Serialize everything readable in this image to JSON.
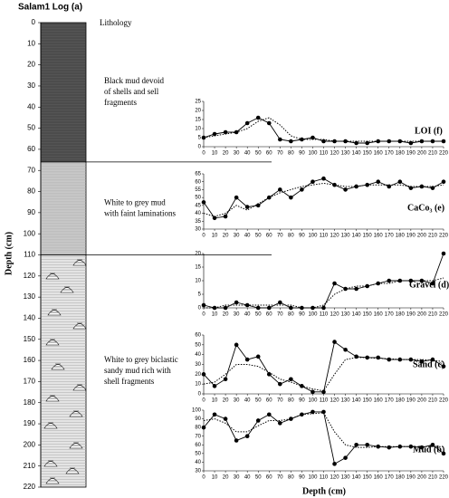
{
  "chart_data": [
    {
      "type": "lithology",
      "title": "Salam1 Log (a)",
      "ylabel": "Depth (cm)",
      "column_label": "Lithology",
      "ylim": [
        0,
        220
      ],
      "yticks": [
        0,
        10,
        20,
        30,
        40,
        50,
        60,
        70,
        80,
        90,
        100,
        110,
        120,
        130,
        140,
        150,
        160,
        170,
        180,
        190,
        200,
        210,
        220
      ],
      "layers": [
        {
          "from": 0,
          "to": 66,
          "color": "#555555",
          "lines": [
            "Black mud devoid",
            "of shells and sell",
            "fragments"
          ]
        },
        {
          "from": 66,
          "to": 110,
          "color": "#c8c8c8",
          "lines": [
            "White to grey mud",
            "with faint laminations"
          ]
        },
        {
          "from": 110,
          "to": 220,
          "color": "#e4e4e4",
          "lines": [
            "White to grey biclastic",
            "sandy mud rich with",
            "shell fragments"
          ]
        }
      ]
    },
    {
      "type": "line",
      "title": "LOI (f)",
      "xlim": [
        0,
        220
      ],
      "xticks": [
        0,
        10,
        20,
        30,
        40,
        50,
        60,
        70,
        80,
        90,
        100,
        110,
        120,
        130,
        140,
        150,
        160,
        170,
        180,
        190,
        200,
        210,
        220
      ],
      "ylim": [
        0,
        25
      ],
      "yticks": [
        0,
        5,
        10,
        15,
        20,
        25
      ],
      "x": [
        0,
        10,
        20,
        30,
        40,
        50,
        60,
        70,
        80,
        90,
        100,
        110,
        120,
        130,
        140,
        150,
        160,
        170,
        180,
        190,
        200,
        210,
        220
      ],
      "series": [
        {
          "color": "#000000",
          "values": [
            5,
            7,
            8,
            8,
            13,
            16,
            13,
            4,
            3,
            4,
            5,
            3,
            3,
            3,
            2,
            2,
            3,
            3,
            3,
            2,
            3,
            3,
            3
          ]
        },
        {
          "color": "#000000",
          "dotted": true,
          "values": [
            5,
            6,
            7,
            8,
            10,
            14,
            16,
            12,
            6,
            4,
            4,
            4,
            3,
            3,
            3,
            3,
            3,
            3,
            3,
            3,
            3,
            3,
            3
          ]
        }
      ]
    },
    {
      "type": "line",
      "title": "CaCo₃ (e)",
      "xlim": [
        0,
        220
      ],
      "xticks": [
        0,
        10,
        20,
        30,
        40,
        50,
        60,
        70,
        80,
        90,
        100,
        110,
        120,
        130,
        140,
        150,
        160,
        170,
        180,
        190,
        200,
        210,
        220
      ],
      "ylim": [
        30,
        65
      ],
      "yticks": [
        30,
        35,
        40,
        45,
        50,
        55,
        60,
        65
      ],
      "x": [
        0,
        10,
        20,
        30,
        40,
        50,
        60,
        70,
        80,
        90,
        100,
        110,
        120,
        130,
        140,
        150,
        160,
        170,
        180,
        190,
        200,
        210,
        220
      ],
      "series": [
        {
          "color": "#000000",
          "values": [
            47,
            37,
            38,
            50,
            44,
            45,
            50,
            55,
            50,
            55,
            60,
            62,
            58,
            55,
            57,
            58,
            60,
            57,
            60,
            56,
            57,
            56,
            60
          ]
        },
        {
          "color": "#000000",
          "dotted": true,
          "values": [
            40,
            38,
            40,
            45,
            42,
            46,
            50,
            53,
            55,
            57,
            58,
            59,
            58,
            57,
            57,
            58,
            58,
            58,
            58,
            57,
            57,
            57,
            58
          ]
        }
      ]
    },
    {
      "type": "line",
      "title": "Gravel (d)",
      "xlim": [
        0,
        220
      ],
      "xticks": [
        0,
        10,
        20,
        30,
        40,
        50,
        60,
        70,
        80,
        90,
        100,
        110,
        120,
        130,
        140,
        150,
        160,
        170,
        180,
        190,
        200,
        210,
        220
      ],
      "ylim": [
        0,
        20
      ],
      "yticks": [
        0,
        5,
        10,
        15,
        20
      ],
      "x": [
        0,
        10,
        20,
        30,
        40,
        50,
        60,
        70,
        80,
        90,
        100,
        110,
        120,
        130,
        140,
        150,
        160,
        170,
        180,
        190,
        200,
        210,
        220
      ],
      "series": [
        {
          "color": "#000000",
          "values": [
            1,
            0,
            0,
            2,
            1,
            0,
            0,
            2,
            0,
            0,
            0,
            0,
            9,
            7,
            7,
            8,
            9,
            10,
            10,
            10,
            10,
            9,
            20
          ]
        },
        {
          "color": "#000000",
          "dotted": true,
          "values": [
            0,
            0,
            1,
            1,
            1,
            1,
            1,
            1,
            1,
            0,
            0,
            1,
            5,
            7,
            8,
            8,
            9,
            9,
            10,
            10,
            10,
            10,
            11
          ]
        }
      ]
    },
    {
      "type": "line",
      "title": "Sand (c)",
      "xlim": [
        0,
        220
      ],
      "xticks": [
        0,
        10,
        20,
        30,
        40,
        50,
        60,
        70,
        80,
        90,
        100,
        110,
        120,
        130,
        140,
        150,
        160,
        170,
        180,
        190,
        200,
        210,
        220
      ],
      "ylim": [
        0,
        60
      ],
      "yticks": [
        0,
        10,
        20,
        30,
        40,
        50,
        60
      ],
      "x": [
        0,
        10,
        20,
        30,
        40,
        50,
        60,
        70,
        80,
        90,
        100,
        110,
        120,
        130,
        140,
        150,
        160,
        170,
        180,
        190,
        200,
        210,
        220
      ],
      "series": [
        {
          "color": "#000000",
          "values": [
            20,
            8,
            15,
            50,
            35,
            38,
            20,
            10,
            15,
            8,
            2,
            2,
            53,
            45,
            38,
            37,
            37,
            35,
            35,
            35,
            33,
            35,
            28
          ]
        },
        {
          "color": "#000000",
          "dotted": true,
          "values": [
            10,
            12,
            20,
            30,
            30,
            28,
            22,
            15,
            12,
            8,
            5,
            3,
            20,
            35,
            37,
            37,
            36,
            36,
            35,
            35,
            35,
            34,
            33
          ]
        }
      ]
    },
    {
      "type": "line",
      "title": "Mud (b)",
      "xlabel": "Depth (cm)",
      "xlim": [
        0,
        220
      ],
      "xticks": [
        0,
        10,
        20,
        30,
        40,
        50,
        60,
        70,
        80,
        90,
        100,
        110,
        120,
        130,
        140,
        150,
        160,
        170,
        180,
        190,
        200,
        210,
        220
      ],
      "ylim": [
        30,
        100
      ],
      "yticks": [
        30,
        40,
        50,
        60,
        70,
        80,
        90,
        100
      ],
      "x": [
        0,
        10,
        20,
        30,
        40,
        50,
        60,
        70,
        80,
        90,
        100,
        110,
        120,
        130,
        140,
        150,
        160,
        170,
        180,
        190,
        200,
        210,
        220
      ],
      "series": [
        {
          "color": "#000000",
          "values": [
            80,
            95,
            90,
            65,
            70,
            88,
            95,
            85,
            90,
            95,
            98,
            98,
            38,
            45,
            60,
            60,
            58,
            57,
            58,
            58,
            57,
            60,
            50
          ]
        },
        {
          "color": "#000000",
          "dotted": true,
          "values": [
            88,
            90,
            85,
            75,
            75,
            82,
            88,
            88,
            90,
            95,
            96,
            97,
            75,
            60,
            57,
            57,
            58,
            58,
            58,
            58,
            58,
            58,
            58
          ]
        }
      ]
    }
  ]
}
